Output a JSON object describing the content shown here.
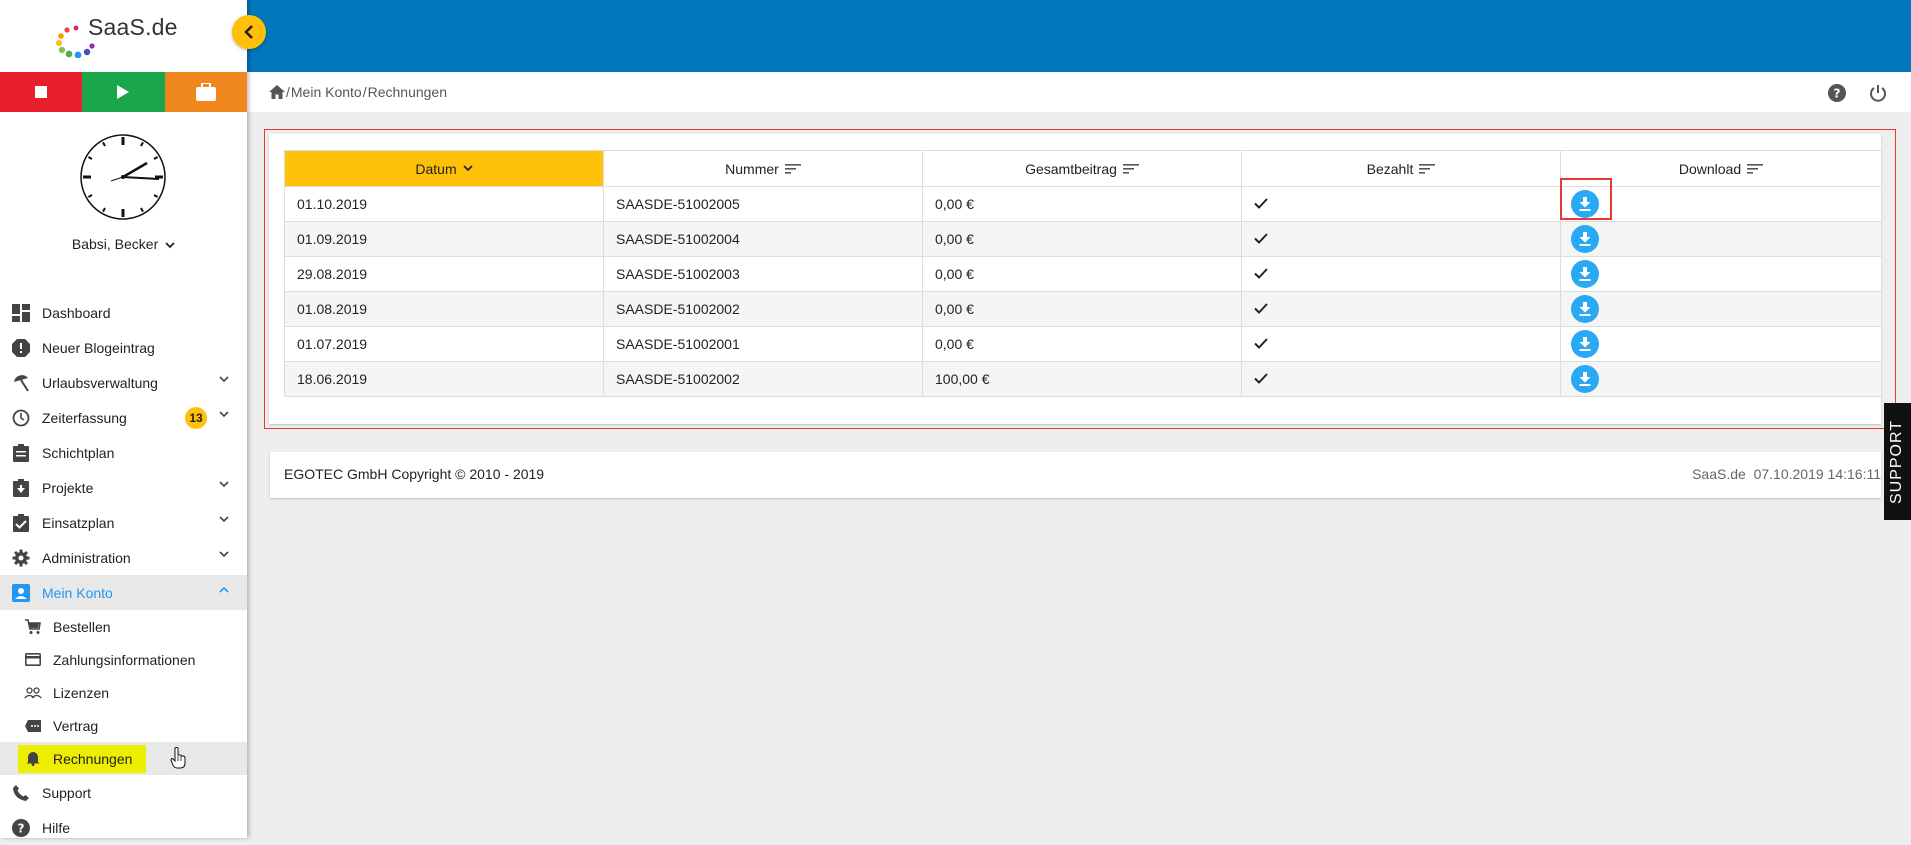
{
  "brand": {
    "logo_text": "SaaS.de"
  },
  "colors": {
    "accent": "#ffc107",
    "topbar": "#0277bd",
    "stop": "#e91e2c",
    "play": "#1aa64a",
    "briefcase": "#f0861e",
    "link": "#2196f3",
    "download": "#29a8f3",
    "highlight": "#eeee00"
  },
  "user": {
    "name": "Babsi, Becker"
  },
  "nav": {
    "items": [
      {
        "label": "Dashboard",
        "icon": "dashboard-icon"
      },
      {
        "label": "Neuer Blogeintrag",
        "icon": "alert-icon"
      },
      {
        "label": "Urlaubsverwaltung",
        "icon": "beach-icon"
      },
      {
        "label": "Zeiterfassung",
        "icon": "clock-icon",
        "badge": "13"
      },
      {
        "label": "Schichtplan",
        "icon": "clipboard-icon"
      },
      {
        "label": "Projekte",
        "icon": "project-icon"
      },
      {
        "label": "Einsatzplan",
        "icon": "check-clipboard-icon"
      },
      {
        "label": "Administration",
        "icon": "gear-icon"
      },
      {
        "label": "Mein Konto",
        "icon": "account-icon"
      }
    ],
    "sub_items": [
      {
        "label": "Bestellen",
        "icon": "cart-icon"
      },
      {
        "label": "Zahlungsinformationen",
        "icon": "credit-card-icon"
      },
      {
        "label": "Lizenzen",
        "icon": "people-icon"
      },
      {
        "label": "Vertrag",
        "icon": "contract-icon"
      },
      {
        "label": "Rechnungen",
        "icon": "bell-icon"
      }
    ],
    "bottom_items": [
      {
        "label": "Support",
        "icon": "phone-icon"
      },
      {
        "label": "Hilfe",
        "icon": "help-icon"
      }
    ]
  },
  "breadcrumb": {
    "home_icon": "home-icon",
    "separator": "/",
    "part1": "Mein Konto",
    "part2": "Rechnungen"
  },
  "table": {
    "columns": [
      "Datum",
      "Nummer",
      "Gesamtbeitrag",
      "Bezahlt",
      "Download"
    ],
    "rows": [
      {
        "datum": "01.10.2019",
        "nummer": "SAASDE-51002005",
        "betrag": "0,00 €",
        "bezahlt": true
      },
      {
        "datum": "01.09.2019",
        "nummer": "SAASDE-51002004",
        "betrag": "0,00 €",
        "bezahlt": true
      },
      {
        "datum": "29.08.2019",
        "nummer": "SAASDE-51002003",
        "betrag": "0,00 €",
        "bezahlt": true
      },
      {
        "datum": "01.08.2019",
        "nummer": "SAASDE-51002002",
        "betrag": "0,00 €",
        "bezahlt": true
      },
      {
        "datum": "01.07.2019",
        "nummer": "SAASDE-51002001",
        "betrag": "0,00 €",
        "bezahlt": true
      },
      {
        "datum": "18.06.2019",
        "nummer": "SAASDE-51002002",
        "betrag": "100,00 €",
        "bezahlt": true
      }
    ]
  },
  "footer": {
    "copyright": "EGOTEC GmbH Copyright © 2010 - 2019",
    "brand": "SaaS.de",
    "timestamp": "07.10.2019 14:16:11"
  },
  "support_tab": "SUPPORT"
}
